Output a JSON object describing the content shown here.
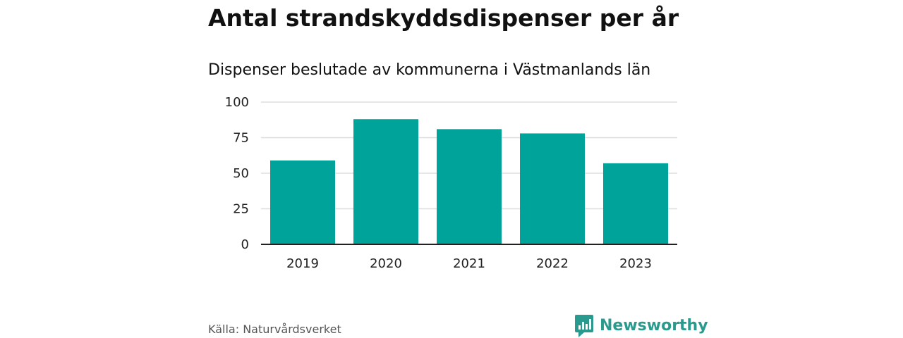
{
  "header": {
    "title": "Antal strandskyddsdispenser per år",
    "subtitle": "Dispenser beslutade av kommunerna i Västmanlands län"
  },
  "footer": {
    "source": "Källa: Naturvårdsverket",
    "brand": "Newsworthy"
  },
  "colors": {
    "bar": "#00a39a",
    "brand": "#2b9a8e",
    "grid": "#dddddd",
    "axis": "#222222"
  },
  "chart_data": {
    "type": "bar",
    "title": "Antal strandskyddsdispenser per år",
    "subtitle": "Dispenser beslutade av kommunerna i Västmanlands län",
    "categories": [
      "2019",
      "2020",
      "2021",
      "2022",
      "2023"
    ],
    "values": [
      59,
      88,
      81,
      78,
      57
    ],
    "xlabel": "",
    "ylabel": "",
    "ylim": [
      0,
      100
    ],
    "yticks": [
      0,
      25,
      50,
      75,
      100
    ],
    "grid": true,
    "legend": "none"
  }
}
